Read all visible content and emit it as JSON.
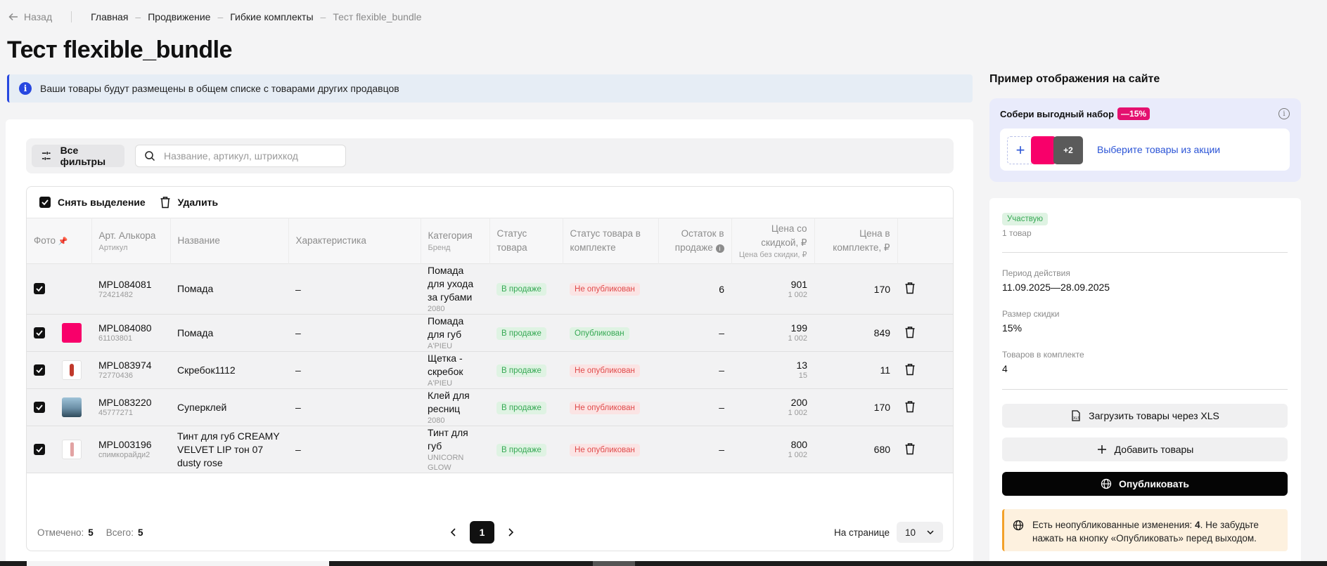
{
  "nav": {
    "back_label": "Назад",
    "breadcrumbs": [
      "Главная",
      "Продвижение",
      "Гибкие комплекты",
      "Тест flexible_bundle"
    ]
  },
  "page_title": "Тест flexible_bundle",
  "info_banner": "Ваши товары будут размещены в общем списке с товарами других продавцов",
  "filters": {
    "all_filters_label": "Все фильтры",
    "search_placeholder": "Название, артикул, штрихкод"
  },
  "actions": {
    "deselect_label": "Снять выделение",
    "delete_label": "Удалить"
  },
  "table": {
    "headers": {
      "photo": "Фото",
      "art_alkor": "Арт. Алькора",
      "art_sub": "Артикул",
      "name": "Название",
      "characteristic": "Характеристика",
      "category": "Категория",
      "category_sub": "Бренд",
      "status": "Статус товара",
      "bundle_status": "Статус товара в комплекте",
      "stock": "Остаток в продаже",
      "price": "Цена со скидкой, ₽",
      "price_sub": "Цена без скидки, ₽",
      "bundle_price": "Цена в комплекте, ₽"
    },
    "rows": [
      {
        "art": "MPL084081",
        "sku": "72421482",
        "name": "Помада",
        "char": "–",
        "category": "Помада для ухода за губами",
        "brand": "2080",
        "status": "В продаже",
        "bundle_status": "Не опубликован",
        "bundle_ok": false,
        "stock": "6",
        "price": "901",
        "price_old": "1 002",
        "bundle_price": "170",
        "photo": "none"
      },
      {
        "art": "MPL084080",
        "sku": "61103801",
        "name": "Помада",
        "char": "–",
        "category": "Помада для губ",
        "brand": "A'PIEU",
        "status": "В продаже",
        "bundle_status": "Опубликован",
        "bundle_ok": true,
        "stock": "–",
        "price": "199",
        "price_old": "1 002",
        "bundle_price": "849",
        "photo": "pink"
      },
      {
        "art": "MPL083974",
        "sku": "72770436",
        "name": "Скребок1112",
        "char": "–",
        "category": "Щетка - скребок",
        "brand": "A'PIEU",
        "status": "В продаже",
        "bundle_status": "Не опубликован",
        "bundle_ok": false,
        "stock": "–",
        "price": "13",
        "price_old": "15",
        "bundle_price": "11",
        "photo": "brush"
      },
      {
        "art": "MPL083220",
        "sku": "45777271",
        "name": "Суперклей",
        "char": "–",
        "category": "Клей для ресниц",
        "brand": "2080",
        "status": "В продаже",
        "bundle_status": "Не опубликован",
        "bundle_ok": false,
        "stock": "–",
        "price": "200",
        "price_old": "1 002",
        "bundle_price": "170",
        "photo": "photo"
      },
      {
        "art": "MPL003196",
        "sku": "спимкорайди2",
        "name": "Тинт для губ CREAMY VELVET LIP тон 07 dusty rose",
        "char": "–",
        "category": "Тинт для губ",
        "brand": "UNICORN GLOW",
        "status": "В продаже",
        "bundle_status": "Не опубликован",
        "bundle_ok": false,
        "stock": "–",
        "price": "800",
        "price_old": "1 002",
        "bundle_price": "680",
        "photo": "tint"
      }
    ]
  },
  "footer": {
    "selected_label": "Отмечено:",
    "selected_value": "5",
    "total_label": "Всего:",
    "total_value": "5",
    "current_page": "1",
    "per_page_label": "На странице",
    "per_page_value": "10"
  },
  "side": {
    "title": "Пример отображения на сайте",
    "preview_title": "Собери выгодный набор",
    "preview_discount": "—15%",
    "preview_more": "+2",
    "preview_pick": "Выберите товары из акции",
    "status_badge": "Участвую",
    "items_count": "1 товар",
    "period_label": "Период действия",
    "period_value": "11.09.2025—28.09.2025",
    "discount_label": "Размер скидки",
    "discount_value": "15%",
    "items_label": "Товаров в комплекте",
    "items_value": "4",
    "upload_label": "Загрузить товары через XLS",
    "add_label": "Добавить товары",
    "publish_label": "Опубликовать",
    "warning_prefix": "Есть неопубликованные изменения: ",
    "warning_count": "4",
    "warning_suffix": ". Не забудьте нажать на кнопку «Опубликовать» перед выходом."
  },
  "colors": {
    "accent_blue": "#2747e0",
    "pink": "#f8006a",
    "success": "#35a853",
    "danger": "#e04b4b",
    "warning": "#f3a12a"
  }
}
